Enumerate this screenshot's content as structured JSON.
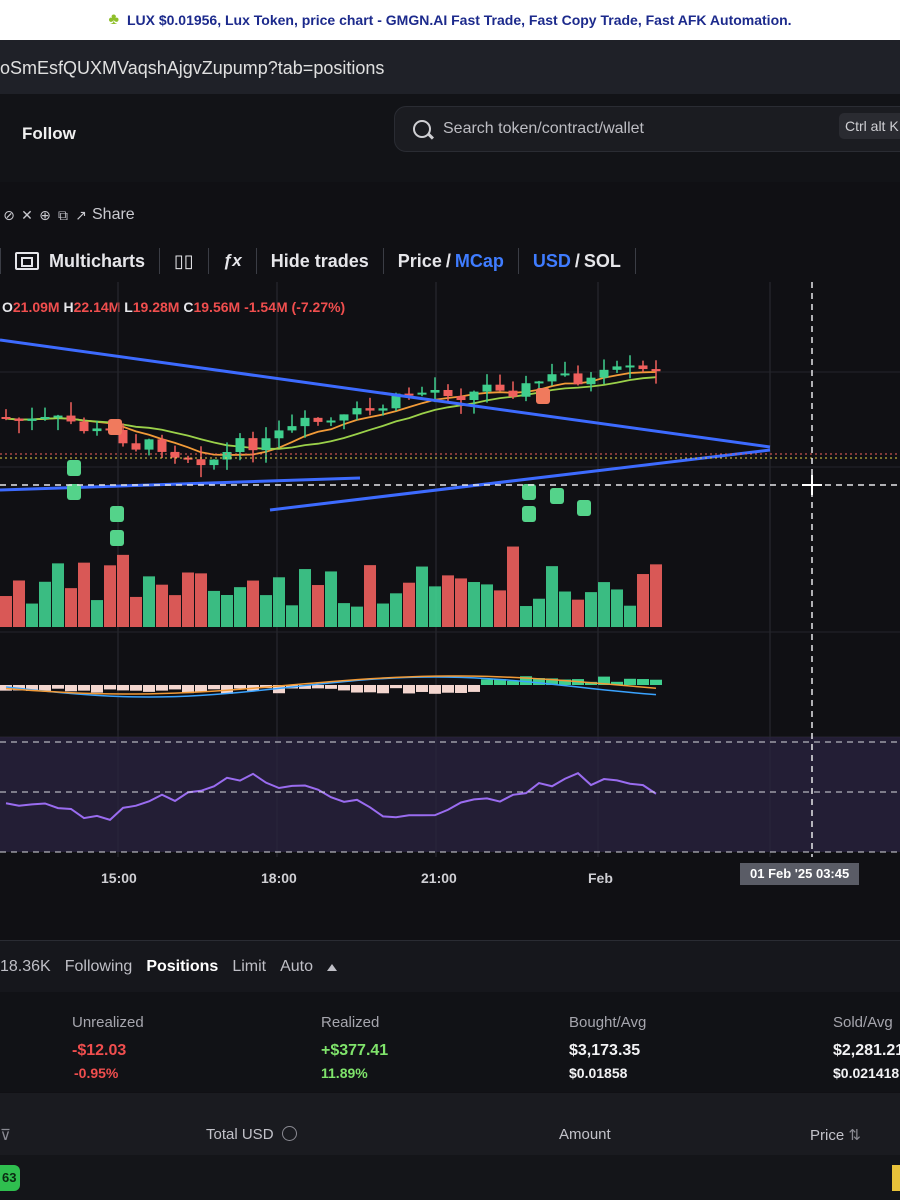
{
  "window": {
    "title": "LUX $0.01956, Lux Token, price chart - GMGN.AI Fast Trade, Fast Copy Trade, Fast AFK Automation."
  },
  "address_bar": {
    "url": "oSmEsfQUXMVaqshAjgvZupump?tab=positions"
  },
  "header": {
    "follow_label": "Follow",
    "search_placeholder": "Search token/contract/wallet",
    "search_shortcut": "Ctrl alt K"
  },
  "share": {
    "label": "Share",
    "icons": [
      "link-icon",
      "x-icon",
      "globe-icon",
      "external-link-icon",
      "share-icon"
    ]
  },
  "toolbar": {
    "multicharts": "Multicharts",
    "hide_trades": "Hide trades",
    "price": "Price",
    "slash": "/",
    "mcap": "MCap",
    "usd": "USD",
    "sol": "SOL"
  },
  "ohlc": {
    "o_key": "O",
    "o_val": "21.09M",
    "h_key": "H",
    "h_val": "22.14M",
    "l_key": "L",
    "l_val": "19.28M",
    "c_key": "C",
    "c_val": "19.56M",
    "change": "-1.54M (-7.27%)"
  },
  "time_axis": {
    "labels": [
      "15:00",
      "18:00",
      "21:00",
      "Feb"
    ],
    "crosshair": "01 Feb '25   03:45"
  },
  "colors": {
    "up": "#3fcf8e",
    "down": "#f0605d",
    "trendline": "#3d6bff",
    "rsi": "#9a6cf0",
    "accent_blue": "#3f7cff",
    "realized_green": "#7fe36b",
    "unrealized_red": "#f04e4e"
  },
  "tabs": {
    "holders_value": "18.36K",
    "items": [
      "Following",
      "Positions",
      "Limit",
      "Auto"
    ],
    "active": "Positions"
  },
  "stats": {
    "unrealized": {
      "label": "Unrealized",
      "value": "-$12.03",
      "percent": "-0.95%"
    },
    "realized": {
      "label": "Realized",
      "value": "+$377.41",
      "percent": "11.89%"
    },
    "bought": {
      "label": "Bought/Avg",
      "value": "$3,173.35",
      "avg": "$0.01858"
    },
    "sold": {
      "label": "Sold/Avg",
      "value": "$2,281.21",
      "avg": "$0.021418"
    }
  },
  "table_header": {
    "columns": [
      "Total USD",
      "Amount",
      "Price"
    ]
  },
  "footer": {
    "badge": "63"
  }
}
